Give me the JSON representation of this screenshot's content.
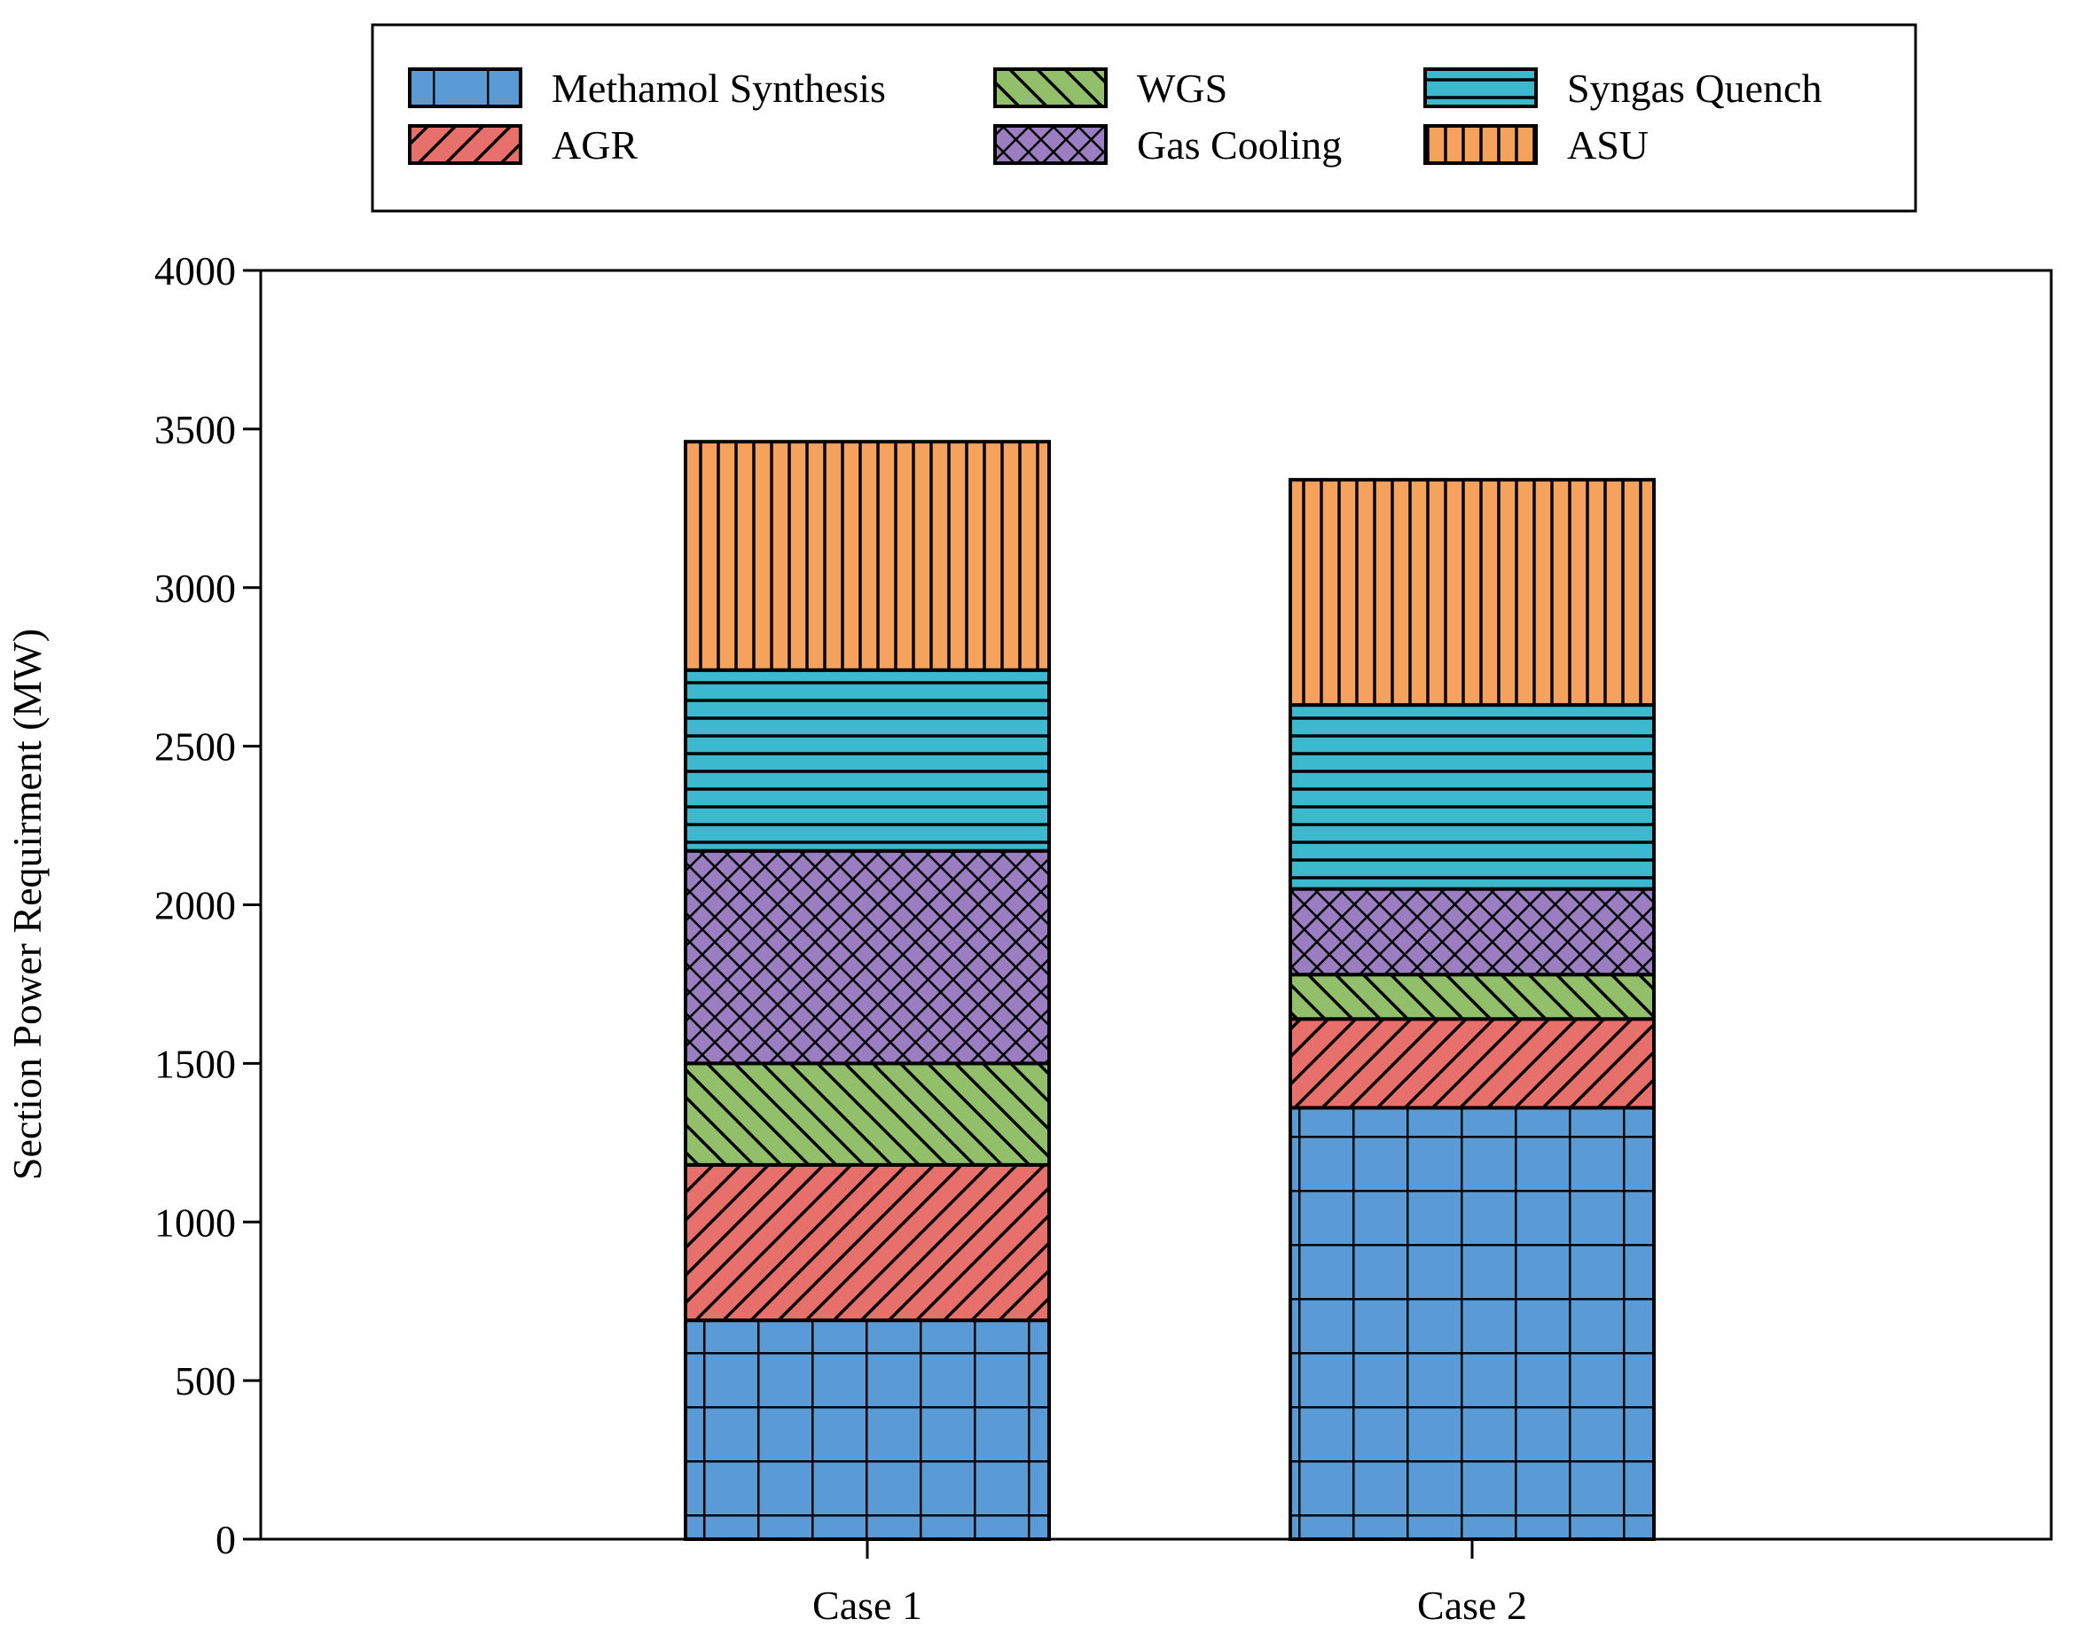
{
  "chart_data": {
    "type": "stacked-bar",
    "title": "",
    "xlabel": "",
    "ylabel": "Section Power Requirment (MW)",
    "ylim": [
      0,
      4000
    ],
    "yticks": [
      0,
      500,
      1000,
      1500,
      2000,
      2500,
      3000,
      3500,
      4000
    ],
    "categories": [
      "Case 1",
      "Case 2"
    ],
    "legend_position": "top",
    "series": [
      {
        "name": "Methamol Synthesis",
        "key": "methanol",
        "color": "#5b9bd5",
        "pattern": "grid",
        "values": [
          690,
          1360
        ]
      },
      {
        "name": "AGR",
        "key": "agr",
        "color": "#e8706a",
        "pattern": "diag",
        "values": [
          490,
          280
        ]
      },
      {
        "name": "WGS",
        "key": "wgs",
        "color": "#92c06a",
        "pattern": "diag-rev",
        "values": [
          320,
          140
        ]
      },
      {
        "name": "Gas Cooling",
        "key": "gascool",
        "color": "#9b7ec2",
        "pattern": "crosshatch",
        "values": [
          670,
          270
        ]
      },
      {
        "name": "Syngas Quench",
        "key": "quench",
        "color": "#3cb8cf",
        "pattern": "horizontal",
        "values": [
          570,
          580
        ]
      },
      {
        "name": "ASU",
        "key": "asu",
        "color": "#f5a25d",
        "pattern": "vertical",
        "values": [
          720,
          710
        ]
      }
    ],
    "legend_order": [
      "methanol",
      "wgs",
      "quench",
      "agr",
      "gascool",
      "asu"
    ]
  }
}
